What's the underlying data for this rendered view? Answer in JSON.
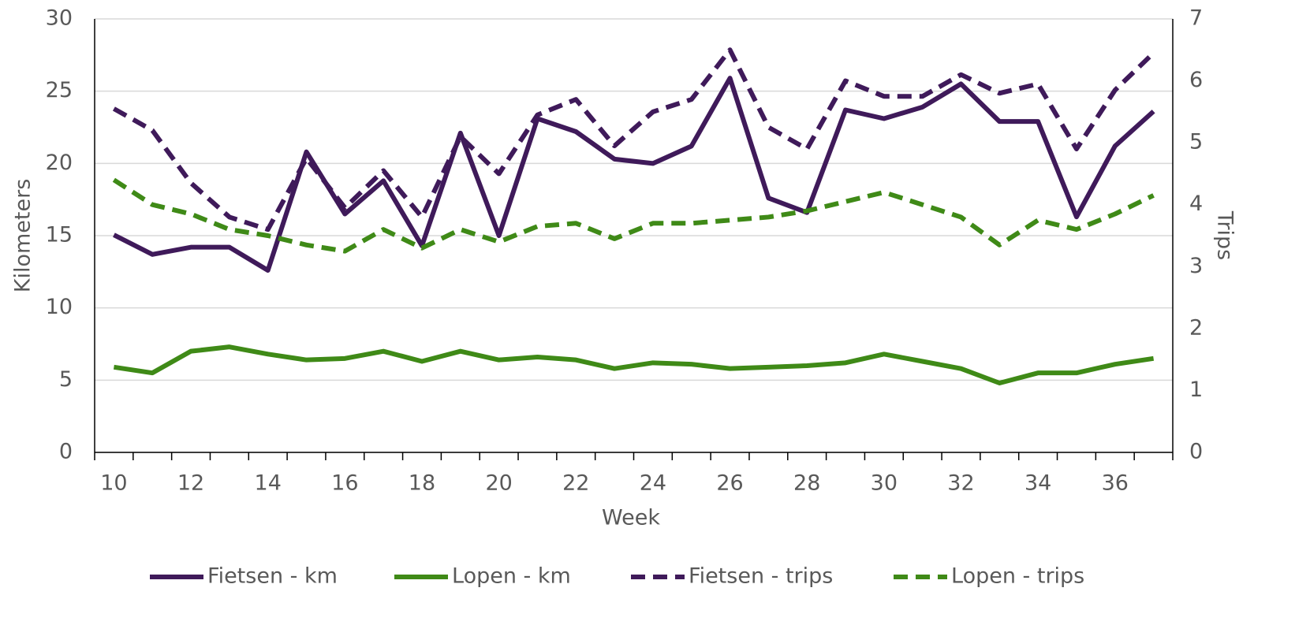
{
  "chart_data": {
    "type": "line",
    "xlabel": "Week",
    "ylabel": "Kilometers",
    "y2label": "Trips",
    "categories": [
      "10",
      null,
      "12",
      null,
      "14",
      null,
      "16",
      null,
      "18",
      null,
      "20",
      null,
      "22",
      null,
      "24",
      null,
      "26",
      null,
      "28",
      null,
      "30",
      null,
      "32",
      null,
      "34",
      null,
      "36",
      null
    ],
    "ylim": [
      0,
      30
    ],
    "yticks": [
      0,
      5,
      10,
      15,
      20,
      25,
      30
    ],
    "y2lim": [
      0,
      7
    ],
    "y2ticks": [
      0,
      1,
      2,
      3,
      4,
      5,
      6,
      7
    ],
    "grid": true,
    "legend": "bottom",
    "series": [
      {
        "name": "Fietsen - km",
        "color": "#3f1a5a",
        "style": "solid",
        "values": [
          15.05,
          13.7,
          14.2,
          14.2,
          12.6,
          20.8,
          16.5,
          18.8,
          14.3,
          22.1,
          15.0,
          23.1,
          22.2,
          20.3,
          20.0,
          21.2,
          25.9,
          17.6,
          16.6,
          23.7,
          23.1,
          23.9,
          25.5,
          22.9,
          22.9,
          16.3,
          21.2,
          23.6
        ]
      },
      {
        "name": "Lopen - km",
        "color": "#3f8a17",
        "style": "solid",
        "values": [
          5.9,
          5.5,
          7.0,
          7.3,
          6.8,
          6.4,
          6.5,
          7.0,
          6.3,
          7.0,
          6.4,
          6.6,
          6.4,
          5.8,
          6.2,
          6.1,
          5.8,
          5.9,
          6.0,
          6.2,
          6.8,
          6.3,
          5.8,
          4.8,
          5.5,
          5.5,
          6.1,
          6.5
        ]
      },
      {
        "name": "Fietsen - trips",
        "color": "#3f1a5a",
        "style": "dashed",
        "axis": "y2",
        "values": [
          5.55,
          5.2,
          4.35,
          3.8,
          3.6,
          4.75,
          3.95,
          4.55,
          3.8,
          5.1,
          4.5,
          5.45,
          5.7,
          4.95,
          5.5,
          5.7,
          6.5,
          5.25,
          4.9,
          6.0,
          5.75,
          5.75,
          6.1,
          5.8,
          5.95,
          4.9,
          5.85,
          6.45
        ]
      },
      {
        "name": "Lopen - trips",
        "color": "#3f8a17",
        "style": "dashed",
        "axis": "y2",
        "values": [
          4.4,
          4.0,
          3.85,
          3.6,
          3.5,
          3.35,
          3.25,
          3.6,
          3.3,
          3.6,
          3.4,
          3.65,
          3.7,
          3.45,
          3.7,
          3.7,
          3.75,
          3.8,
          3.9,
          4.05,
          4.2,
          4.0,
          3.8,
          3.35,
          3.75,
          3.6,
          3.85,
          4.15
        ]
      }
    ]
  }
}
